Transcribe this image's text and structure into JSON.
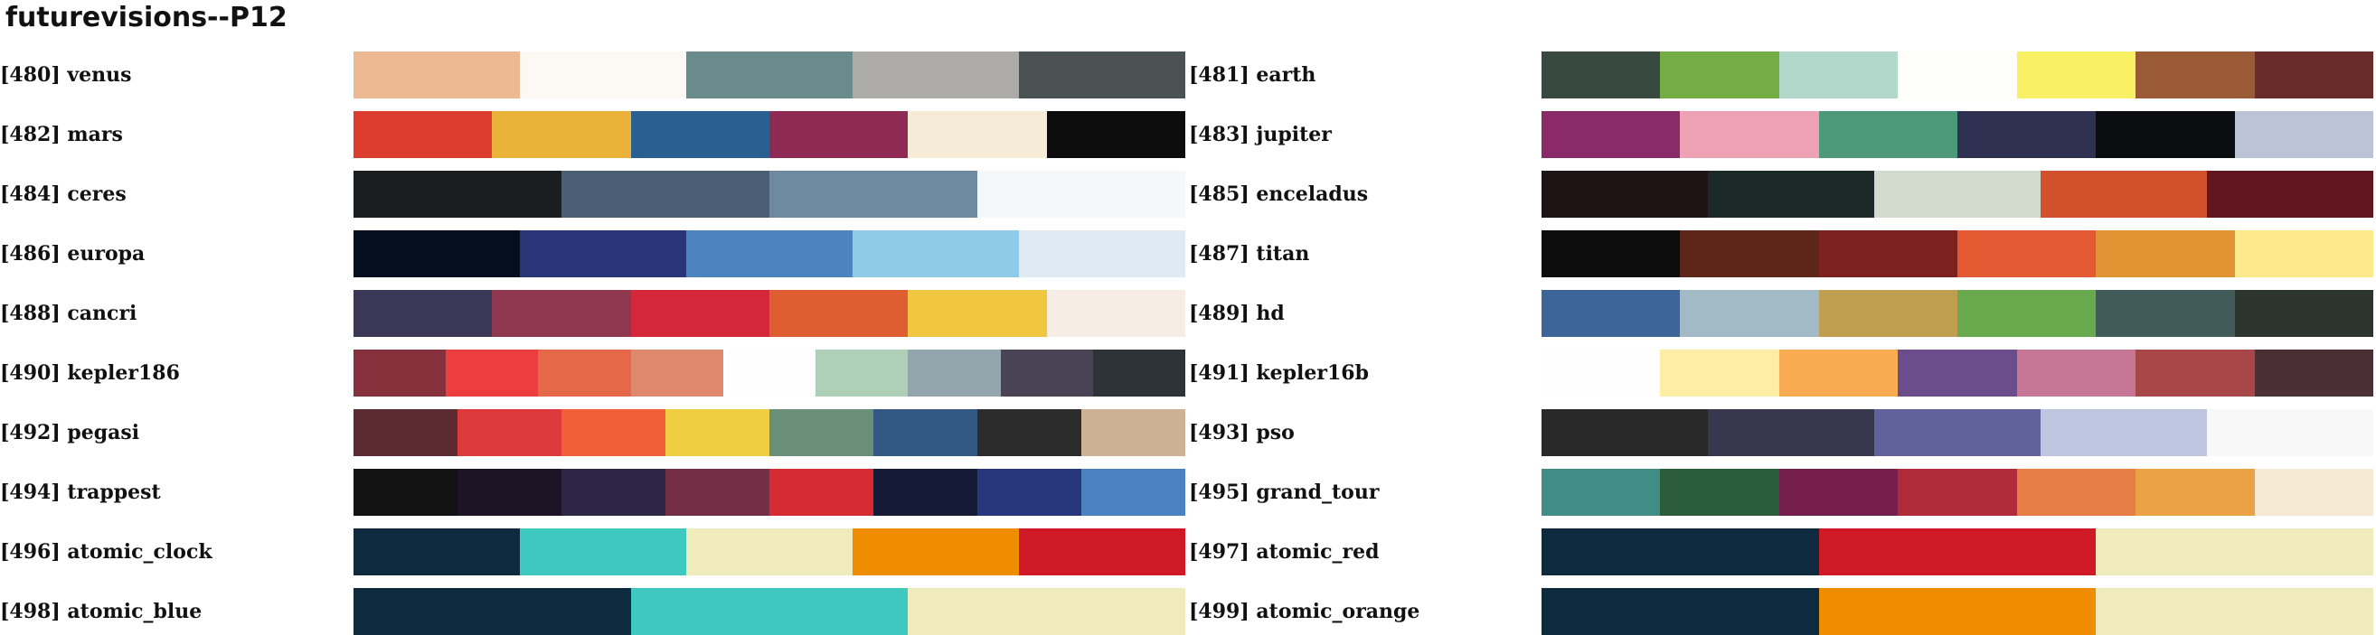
{
  "title": "futurevisions--P12",
  "palettes": [
    {
      "label": "[480] venus",
      "colors": [
        "#ecb993",
        "#fcf8f3",
        "#6a8b8b",
        "#acaba7",
        "#4b5352"
      ]
    },
    {
      "label": "[481] earth",
      "colors": [
        "#384a3f",
        "#74ad43",
        "#b2d8cc",
        "#fefefa",
        "#faf063",
        "#995a35",
        "#6a2c2a"
      ]
    },
    {
      "label": "[482] mars",
      "colors": [
        "#dc3d2e",
        "#eab239",
        "#2a5f91",
        "#8f2a54",
        "#f5ebd6",
        "#0c0c0c"
      ]
    },
    {
      "label": "[483] jupiter",
      "colors": [
        "#8a2a69",
        "#eea1b2",
        "#4c9979",
        "#2f3152",
        "#0c0d10",
        "#bdc3d6"
      ]
    },
    {
      "label": "[484] ceres",
      "colors": [
        "#1a1e21",
        "#4b5f74",
        "#6e8aa0",
        "#f5f7f9"
      ]
    },
    {
      "label": "[485] enceladus",
      "colors": [
        "#1e1315",
        "#1b2a28",
        "#d3dbcf",
        "#d3502c",
        "#611620"
      ]
    },
    {
      "label": "[486] europa",
      "colors": [
        "#050f20",
        "#283576",
        "#4b84bf",
        "#8fcbe6",
        "#e0eaf3"
      ]
    },
    {
      "label": "[487] titan",
      "colors": [
        "#0c0c0c",
        "#5e2519",
        "#7c2020",
        "#e25932",
        "#e19233",
        "#fee98d"
      ]
    },
    {
      "label": "[488] cancri",
      "colors": [
        "#3a3757",
        "#8f374f",
        "#d5273a",
        "#de5e31",
        "#f1c641",
        "#f6eee4"
      ]
    },
    {
      "label": "[489] hd",
      "colors": [
        "#3e6599",
        "#a2b9c6",
        "#c09e50",
        "#6aaa4f",
        "#405b59",
        "#2c342e"
      ]
    },
    {
      "label": "[490] kepler186",
      "colors": [
        "#85303a",
        "#ec3e3e",
        "#e56849",
        "#df886d",
        "#fefefe",
        "#aed0b6",
        "#93a5ad",
        "#4a4356",
        "#2e3337"
      ]
    },
    {
      "label": "[491] kepler16b",
      "colors": [
        "#fefefe",
        "#feeda5",
        "#f9ab52",
        "#6a4d8a",
        "#c77695",
        "#a84747",
        "#4a3034"
      ]
    },
    {
      "label": "[492] pegasi",
      "colors": [
        "#5c2b31",
        "#de3a3e",
        "#f05f38",
        "#efcf41",
        "#6a8f78",
        "#345884",
        "#2c2c2c",
        "#ccb195"
      ]
    },
    {
      "label": "[493] pso",
      "colors": [
        "#292929",
        "#393650",
        "#61629d",
        "#bdc5df",
        "#f8f8f8"
      ]
    },
    {
      "label": "[494] trappest",
      "colors": [
        "#121212",
        "#1e1426",
        "#2e2547",
        "#742f47",
        "#d72b33",
        "#151b34",
        "#28367b",
        "#4a82bf"
      ]
    },
    {
      "label": "[495] grand_tour",
      "colors": [
        "#3f8d84",
        "#2b5d3d",
        "#761e4c",
        "#b12c3a",
        "#e67d44",
        "#eba244",
        "#f7ead5"
      ]
    },
    {
      "label": "[496] atomic_clock",
      "colors": [
        "#0e2a3e",
        "#3ec8c0",
        "#f0ebbd",
        "#f08c00",
        "#cf1926"
      ]
    },
    {
      "label": "[497] atomic_red",
      "colors": [
        "#0e2a3e",
        "#cf1926",
        "#f0ebbd"
      ]
    },
    {
      "label": "[498] atomic_blue",
      "colors": [
        "#0e2a3e",
        "#3ec8c0",
        "#f0ebbd"
      ]
    },
    {
      "label": "[499] atomic_orange",
      "colors": [
        "#0e2a3e",
        "#f08c00",
        "#f0ebbd"
      ]
    }
  ]
}
